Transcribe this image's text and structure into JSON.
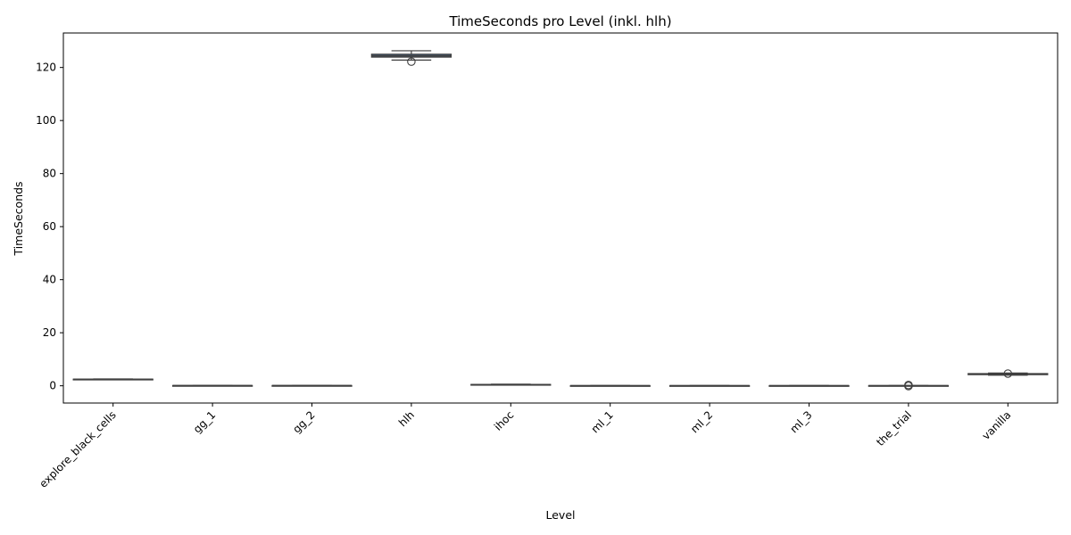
{
  "chart_data": {
    "type": "box",
    "title": "TimeSeconds pro Level (inkl. hlh)",
    "xlabel": "Level",
    "ylabel": "TimeSeconds",
    "ylim": [
      -6.5,
      133
    ],
    "yticks": [
      0,
      20,
      40,
      60,
      80,
      100,
      120
    ],
    "grid": false,
    "box_color": "#5078a6",
    "line_color": "#3f3f3f",
    "categories": [
      "explore_black_cells",
      "gg_1",
      "gg_2",
      "hlh",
      "ihoc",
      "ml_1",
      "ml_2",
      "ml_3",
      "the_trial",
      "vanilla"
    ],
    "boxes": [
      {
        "category": "explore_black_cells",
        "whislo": 2.3,
        "q1": 2.4,
        "median": 2.45,
        "q3": 2.5,
        "whishi": 2.6,
        "fliers": []
      },
      {
        "category": "gg_1",
        "whislo": 0.0,
        "q1": 0.05,
        "median": 0.08,
        "q3": 0.1,
        "whishi": 0.15,
        "fliers": []
      },
      {
        "category": "gg_2",
        "whislo": 0.0,
        "q1": 0.05,
        "median": 0.08,
        "q3": 0.1,
        "whishi": 0.15,
        "fliers": []
      },
      {
        "category": "hlh",
        "whislo": 122.8,
        "q1": 123.9,
        "median": 124.4,
        "q3": 125.0,
        "whishi": 126.3,
        "fliers": [
          122.2
        ]
      },
      {
        "category": "ihoc",
        "whislo": 0.3,
        "q1": 0.4,
        "median": 0.45,
        "q3": 0.5,
        "whishi": 0.6,
        "fliers": []
      },
      {
        "category": "ml_1",
        "whislo": 0.0,
        "q1": 0.03,
        "median": 0.05,
        "q3": 0.07,
        "whishi": 0.1,
        "fliers": []
      },
      {
        "category": "ml_2",
        "whislo": 0.0,
        "q1": 0.03,
        "median": 0.05,
        "q3": 0.07,
        "whishi": 0.1,
        "fliers": []
      },
      {
        "category": "ml_3",
        "whislo": 0.0,
        "q1": 0.03,
        "median": 0.05,
        "q3": 0.07,
        "whishi": 0.1,
        "fliers": []
      },
      {
        "category": "the_trial",
        "whislo": 0.0,
        "q1": 0.03,
        "median": 0.05,
        "q3": 0.08,
        "whishi": 0.12,
        "fliers": [
          0.3,
          -0.1
        ]
      },
      {
        "category": "vanilla",
        "whislo": 4.0,
        "q1": 4.2,
        "median": 4.45,
        "q3": 4.6,
        "whishi": 4.8,
        "fliers": [
          4.6
        ]
      }
    ]
  }
}
